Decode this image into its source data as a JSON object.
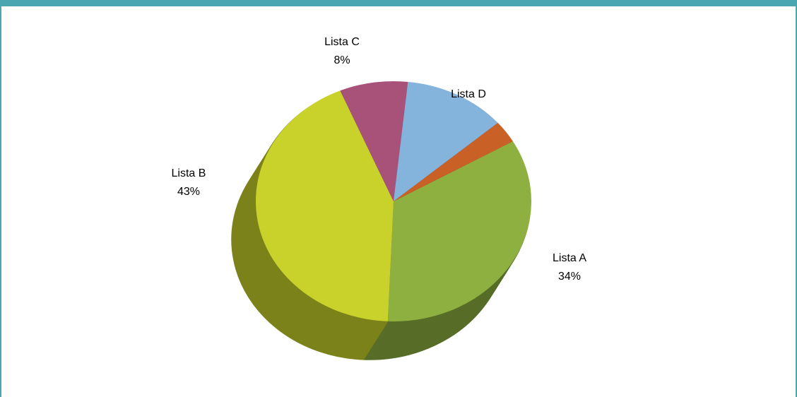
{
  "chart_data": {
    "type": "pie",
    "categories": [
      "Lista A",
      "Lista B",
      "Lista C",
      "Lista D",
      null
    ],
    "values": [
      34,
      43,
      8,
      12,
      3
    ],
    "value_labels": [
      "34%",
      "43%",
      "8%",
      null,
      null
    ],
    "colors": [
      "#8db040",
      "#c8d22a",
      "#a8527a",
      "#84b3dc",
      "#c96127"
    ]
  }
}
